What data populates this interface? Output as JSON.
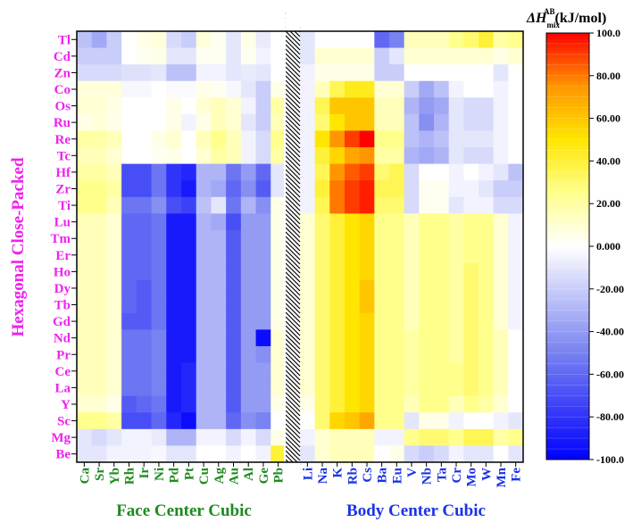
{
  "chart_data": {
    "type": "heatmap",
    "title": "ΔH_mix^AB (kJ/mol)",
    "colorbar": {
      "label_main": "ΔH",
      "label_sub": "mix",
      "label_sup": "AB",
      "label_unit": "(kJ/mol)",
      "range": [
        -100,
        100
      ],
      "ticks": [
        "100.0",
        "80.00",
        "60.00",
        "40.00",
        "20.00",
        "0.000",
        "-20.00",
        "-40.00",
        "-60.00",
        "-80.00",
        "-100.0"
      ],
      "tick_values": [
        100,
        80,
        60,
        40,
        20,
        0,
        -20,
        -40,
        -60,
        -80,
        -100
      ]
    },
    "ylabel": "Hexagonal Close-Packed",
    "xgroups": [
      {
        "label": "Face Center Cubic",
        "color": "#1e8a1e"
      },
      {
        "label": "Body Center Cubic",
        "color": "#1a33e6"
      }
    ],
    "rows": [
      "Tl",
      "Cd",
      "Zn",
      "Co",
      "Os",
      "Ru",
      "Re",
      "Tc",
      "Hf",
      "Zr",
      "Ti",
      "Lu",
      "Tm",
      "Er",
      "Ho",
      "Dy",
      "Tb",
      "Gd",
      "Nd",
      "Pr",
      "Ce",
      "La",
      "Y",
      "Sc",
      "Mg",
      "Be"
    ],
    "fcc_columns": [
      "Ca",
      "Sr",
      "Yb",
      "Rh",
      "Ir",
      "Ni",
      "Pd",
      "Pt",
      "Cu",
      "Ag",
      "Au",
      "Al",
      "Ge",
      "Pb"
    ],
    "bcc_columns": [
      "Li",
      "Na",
      "K",
      "Rb",
      "Cs",
      "Ba",
      "Eu",
      "V",
      "Nb",
      "Ta",
      "Cr",
      "Mo",
      "W",
      "Mn",
      "Fe"
    ],
    "fcc_values": [
      [
        -25,
        -35,
        -20,
        0,
        5,
        8,
        -15,
        -20,
        8,
        3,
        -10,
        5,
        -8,
        0
      ],
      [
        -20,
        -20,
        -20,
        0,
        3,
        5,
        -10,
        -10,
        3,
        3,
        -10,
        3,
        -5,
        0
      ],
      [
        -15,
        -15,
        -15,
        -12,
        -12,
        -10,
        -25,
        -25,
        -5,
        -5,
        -10,
        -8,
        -10,
        0
      ],
      [
        8,
        8,
        8,
        -3,
        -3,
        0,
        -2,
        -2,
        5,
        3,
        -3,
        -10,
        -20,
        5
      ],
      [
        10,
        10,
        5,
        0,
        0,
        0,
        5,
        0,
        10,
        15,
        10,
        -5,
        -20,
        20
      ],
      [
        5,
        8,
        5,
        0,
        0,
        0,
        5,
        -5,
        5,
        15,
        10,
        -10,
        -20,
        15
      ],
      [
        20,
        20,
        15,
        0,
        0,
        5,
        10,
        0,
        15,
        25,
        15,
        -5,
        -15,
        25
      ],
      [
        15,
        15,
        10,
        0,
        0,
        3,
        5,
        0,
        10,
        20,
        15,
        -5,
        -15,
        20
      ],
      [
        20,
        20,
        15,
        -70,
        -70,
        -55,
        -80,
        -85,
        -30,
        -30,
        -55,
        -40,
        -60,
        -10
      ],
      [
        25,
        25,
        20,
        -70,
        -70,
        -55,
        -80,
        -90,
        -30,
        -35,
        -60,
        -45,
        -65,
        -10
      ],
      [
        25,
        25,
        15,
        -55,
        -55,
        -45,
        -70,
        -75,
        -25,
        -10,
        -55,
        -30,
        -45,
        5
      ],
      [
        15,
        15,
        10,
        -60,
        -60,
        -55,
        -90,
        -90,
        -30,
        -35,
        -70,
        -40,
        -40,
        5
      ],
      [
        15,
        15,
        10,
        -60,
        -60,
        -55,
        -90,
        -90,
        -30,
        -30,
        -65,
        -40,
        -40,
        5
      ],
      [
        15,
        15,
        10,
        -60,
        -60,
        -55,
        -90,
        -90,
        -30,
        -30,
        -65,
        -40,
        -40,
        5
      ],
      [
        15,
        15,
        10,
        -60,
        -60,
        -55,
        -90,
        -90,
        -30,
        -30,
        -65,
        -40,
        -40,
        5
      ],
      [
        15,
        15,
        10,
        -60,
        -65,
        -55,
        -90,
        -90,
        -30,
        -30,
        -65,
        -40,
        -40,
        5
      ],
      [
        15,
        15,
        10,
        -60,
        -65,
        -55,
        -90,
        -90,
        -30,
        -30,
        -65,
        -40,
        -40,
        5
      ],
      [
        15,
        15,
        10,
        -65,
        -65,
        -55,
        -90,
        -90,
        -30,
        -30,
        -65,
        -40,
        -40,
        5
      ],
      [
        15,
        15,
        10,
        -55,
        -55,
        -50,
        -90,
        -90,
        -30,
        -30,
        -65,
        -40,
        -95,
        10
      ],
      [
        15,
        15,
        10,
        -55,
        -55,
        -50,
        -90,
        -90,
        -30,
        -30,
        -65,
        -40,
        -45,
        10
      ],
      [
        15,
        15,
        10,
        -55,
        -55,
        -50,
        -90,
        -85,
        -30,
        -30,
        -65,
        -40,
        -40,
        10
      ],
      [
        15,
        15,
        10,
        -55,
        -55,
        -50,
        -90,
        -85,
        -30,
        -30,
        -65,
        -40,
        -40,
        10
      ],
      [
        10,
        10,
        5,
        -65,
        -60,
        -55,
        -90,
        -85,
        -30,
        -30,
        -65,
        -40,
        -40,
        5
      ],
      [
        25,
        25,
        20,
        -70,
        -70,
        -60,
        -85,
        -95,
        -30,
        -30,
        -60,
        -45,
        -50,
        0
      ],
      [
        -10,
        -15,
        -10,
        -5,
        -5,
        -8,
        -30,
        -30,
        -5,
        -5,
        -15,
        -5,
        -15,
        5
      ],
      [
        -10,
        -10,
        -5,
        -5,
        -5,
        -3,
        -10,
        -10,
        0,
        0,
        -5,
        0,
        -5,
        40
      ]
    ],
    "bcc_values": [
      [
        -10,
        0,
        0,
        0,
        0,
        -60,
        -50,
        15,
        15,
        15,
        25,
        30,
        40,
        20,
        25
      ],
      [
        -10,
        10,
        10,
        10,
        10,
        -20,
        -10,
        10,
        10,
        10,
        10,
        10,
        10,
        5,
        10
      ],
      [
        -5,
        5,
        5,
        5,
        5,
        -20,
        -20,
        0,
        0,
        0,
        0,
        0,
        0,
        -10,
        0
      ],
      [
        -5,
        15,
        35,
        45,
        45,
        10,
        10,
        -20,
        -35,
        -25,
        -5,
        0,
        0,
        -5,
        0
      ],
      [
        -5,
        35,
        60,
        60,
        60,
        15,
        15,
        -30,
        -40,
        -35,
        -10,
        -15,
        -15,
        -5,
        0
      ],
      [
        -5,
        30,
        50,
        60,
        60,
        15,
        15,
        -25,
        -45,
        -30,
        -10,
        -15,
        -15,
        -5,
        0
      ],
      [
        -5,
        50,
        75,
        90,
        100,
        25,
        25,
        -25,
        -30,
        -25,
        -10,
        -10,
        -10,
        -5,
        0
      ],
      [
        -5,
        40,
        55,
        70,
        75,
        20,
        20,
        -30,
        -35,
        -30,
        -10,
        -15,
        -15,
        -5,
        0
      ],
      [
        -5,
        35,
        75,
        85,
        90,
        30,
        35,
        -15,
        0,
        0,
        -5,
        0,
        -5,
        -10,
        -25
      ],
      [
        -5,
        40,
        80,
        90,
        95,
        35,
        35,
        -15,
        3,
        3,
        -5,
        -5,
        -10,
        -20,
        -20
      ],
      [
        -5,
        35,
        80,
        90,
        95,
        30,
        30,
        -15,
        3,
        3,
        -10,
        -5,
        -5,
        -15,
        -15
      ],
      [
        10,
        30,
        40,
        50,
        55,
        25,
        25,
        15,
        25,
        25,
        20,
        25,
        25,
        10,
        -5
      ],
      [
        10,
        30,
        40,
        50,
        55,
        25,
        25,
        15,
        25,
        25,
        20,
        25,
        25,
        10,
        -5
      ],
      [
        10,
        30,
        40,
        50,
        55,
        25,
        25,
        15,
        25,
        25,
        20,
        25,
        25,
        10,
        -5
      ],
      [
        10,
        30,
        40,
        50,
        55,
        25,
        25,
        15,
        25,
        25,
        20,
        30,
        25,
        10,
        -5
      ],
      [
        10,
        30,
        40,
        50,
        60,
        25,
        25,
        15,
        25,
        25,
        20,
        30,
        25,
        10,
        -5
      ],
      [
        10,
        30,
        40,
        50,
        60,
        25,
        25,
        15,
        25,
        25,
        20,
        30,
        25,
        10,
        -5
      ],
      [
        10,
        30,
        40,
        50,
        55,
        25,
        25,
        15,
        25,
        25,
        20,
        30,
        25,
        10,
        -5
      ],
      [
        10,
        30,
        40,
        50,
        55,
        25,
        25,
        20,
        25,
        25,
        20,
        30,
        25,
        15,
        0
      ],
      [
        10,
        30,
        40,
        50,
        55,
        25,
        25,
        20,
        25,
        25,
        20,
        30,
        25,
        15,
        0
      ],
      [
        10,
        30,
        40,
        50,
        55,
        25,
        25,
        20,
        25,
        25,
        25,
        30,
        25,
        15,
        0
      ],
      [
        10,
        30,
        40,
        50,
        55,
        25,
        25,
        20,
        25,
        25,
        25,
        30,
        25,
        15,
        0
      ],
      [
        5,
        30,
        40,
        50,
        55,
        25,
        25,
        15,
        25,
        25,
        15,
        25,
        20,
        10,
        0
      ],
      [
        0,
        30,
        55,
        60,
        70,
        25,
        25,
        -10,
        5,
        5,
        -5,
        0,
        0,
        -5,
        -10
      ],
      [
        -5,
        10,
        15,
        15,
        15,
        -5,
        -5,
        25,
        30,
        30,
        25,
        35,
        35,
        20,
        25
      ],
      [
        -10,
        10,
        15,
        15,
        15,
        0,
        5,
        -15,
        -20,
        -15,
        -5,
        -10,
        -10,
        0,
        -10
      ]
    ]
  }
}
